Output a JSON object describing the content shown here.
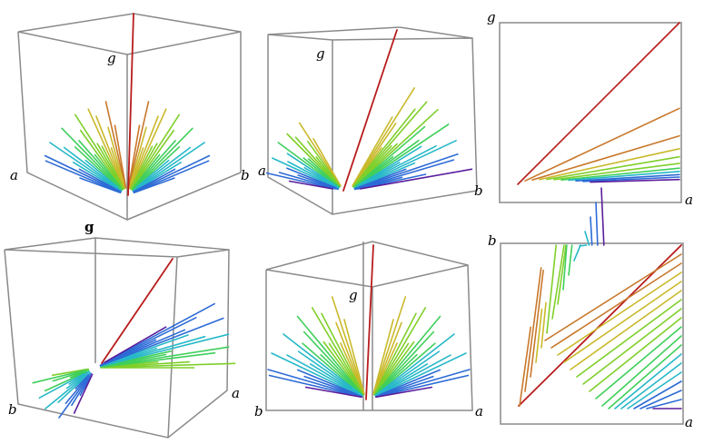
{
  "panels": [
    {
      "id": "p1",
      "labels": {
        "a": "a",
        "b": "b",
        "g": "g"
      }
    },
    {
      "id": "p2",
      "labels": {
        "a": "a",
        "b": "b",
        "g": "g"
      }
    },
    {
      "id": "p3",
      "labels": {
        "x": "a",
        "y": "g"
      }
    },
    {
      "id": "p4",
      "labels": {
        "a": "a",
        "b": "b",
        "g": "g"
      }
    },
    {
      "id": "p5",
      "labels": {
        "a": "a",
        "b": "b",
        "g": "g"
      }
    },
    {
      "id": "p6",
      "labels": {
        "x": "a",
        "y": "b"
      }
    }
  ],
  "colors": {
    "box": "#8a8a8a",
    "ramp": [
      "#5a1d9c",
      "#2d6bd6",
      "#26b8c8",
      "#3fcf5a",
      "#7fcf2a",
      "#c9b92a",
      "#c8782a",
      "#b81c1c"
    ]
  }
}
